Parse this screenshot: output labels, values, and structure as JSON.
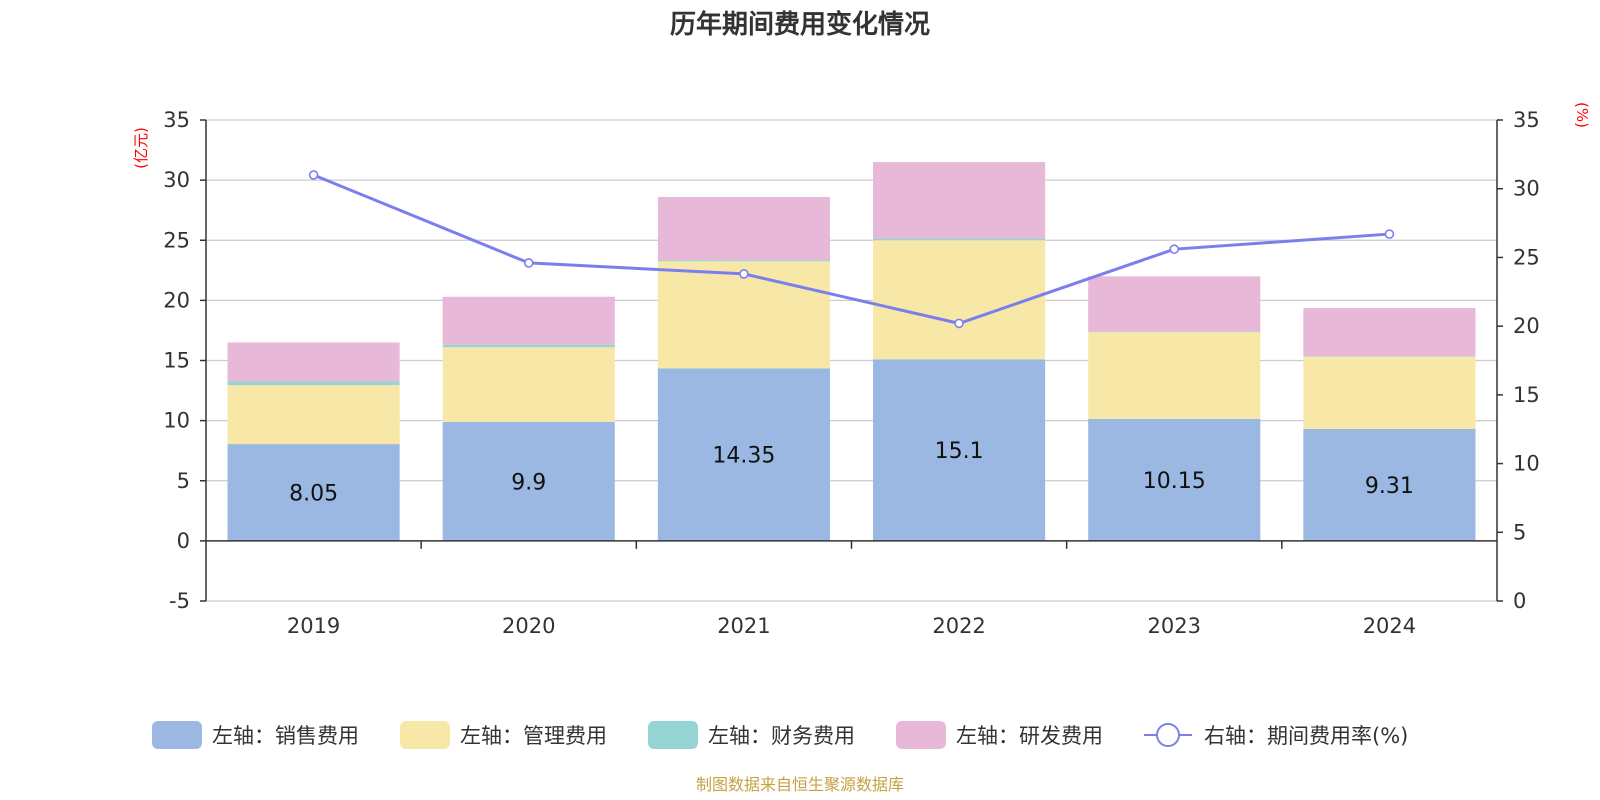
{
  "chart_data": {
    "type": "bar",
    "title": "历年期间费用变化情况",
    "categories": [
      "2019",
      "2020",
      "2021",
      "2022",
      "2023",
      "2024"
    ],
    "left_axis": {
      "unit": "(亿元)",
      "range": [
        -5,
        35
      ],
      "ticks": [
        "35",
        "30",
        "25",
        "20",
        "15",
        "10",
        "5",
        "0",
        "-5"
      ]
    },
    "right_axis": {
      "unit": "(%)",
      "range": [
        0,
        35
      ],
      "ticks": [
        "35",
        "30",
        "25",
        "20",
        "15",
        "10",
        "5",
        "0"
      ]
    },
    "series": [
      {
        "name": "左轴：销售费用",
        "axis": "left",
        "stack": true,
        "color": "#9bb8e2",
        "values": [
          8.05,
          9.9,
          14.35,
          15.1,
          10.15,
          9.31
        ]
      },
      {
        "name": "左轴：管理费用",
        "axis": "left",
        "stack": true,
        "color": "#f8e8a8",
        "values": [
          4.9,
          6.2,
          8.9,
          9.9,
          7.2,
          6.0
        ]
      },
      {
        "name": "左轴：财务费用",
        "axis": "left",
        "stack": true,
        "color": "#96d4d6",
        "values": [
          0.3,
          0.2,
          0.1,
          0.15,
          0.05,
          0.05
        ]
      },
      {
        "name": "左轴：研发费用",
        "axis": "left",
        "stack": true,
        "color": "#e8b8d8",
        "values": [
          3.25,
          4.0,
          5.25,
          6.35,
          4.6,
          4.0
        ]
      },
      {
        "name": "右轴：期间费用率(%)",
        "axis": "right",
        "type": "line",
        "color": "#7b7fee",
        "values": [
          31.0,
          24.6,
          23.8,
          20.2,
          25.6,
          26.7
        ]
      }
    ],
    "data_labels": [
      "8.05",
      "9.9",
      "14.35",
      "15.1",
      "10.15",
      "9.31"
    ],
    "grid": true,
    "legend_position": "bottom"
  },
  "source_note": "制图数据来自恒生聚源数据库"
}
